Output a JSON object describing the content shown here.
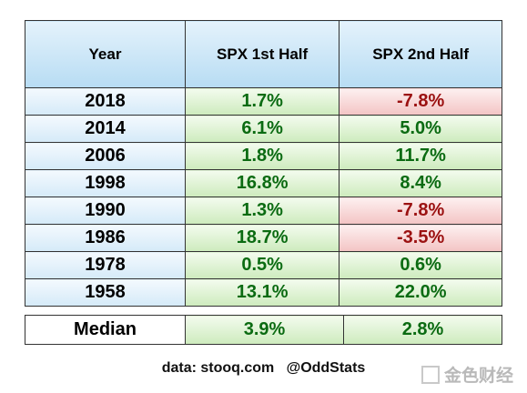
{
  "table": {
    "header": [
      "Year",
      "SPX 1st Half",
      "SPX 2nd Half"
    ],
    "rows": [
      [
        "2018",
        "1.7%",
        "-7.8%"
      ],
      [
        "2014",
        "6.1%",
        "5.0%"
      ],
      [
        "2006",
        "1.8%",
        "11.7%"
      ],
      [
        "1998",
        "16.8%",
        "8.4%"
      ],
      [
        "1990",
        "1.3%",
        "-7.8%"
      ],
      [
        "1986",
        "18.7%",
        "-3.5%"
      ],
      [
        "1978",
        "0.5%",
        "0.6%"
      ],
      [
        "1958",
        "13.1%",
        "22.0%"
      ]
    ],
    "median": [
      "Median",
      "3.9%",
      "2.8%"
    ]
  },
  "footer": "data: stooq.com   @OddStats",
  "watermark": "金色财经"
}
